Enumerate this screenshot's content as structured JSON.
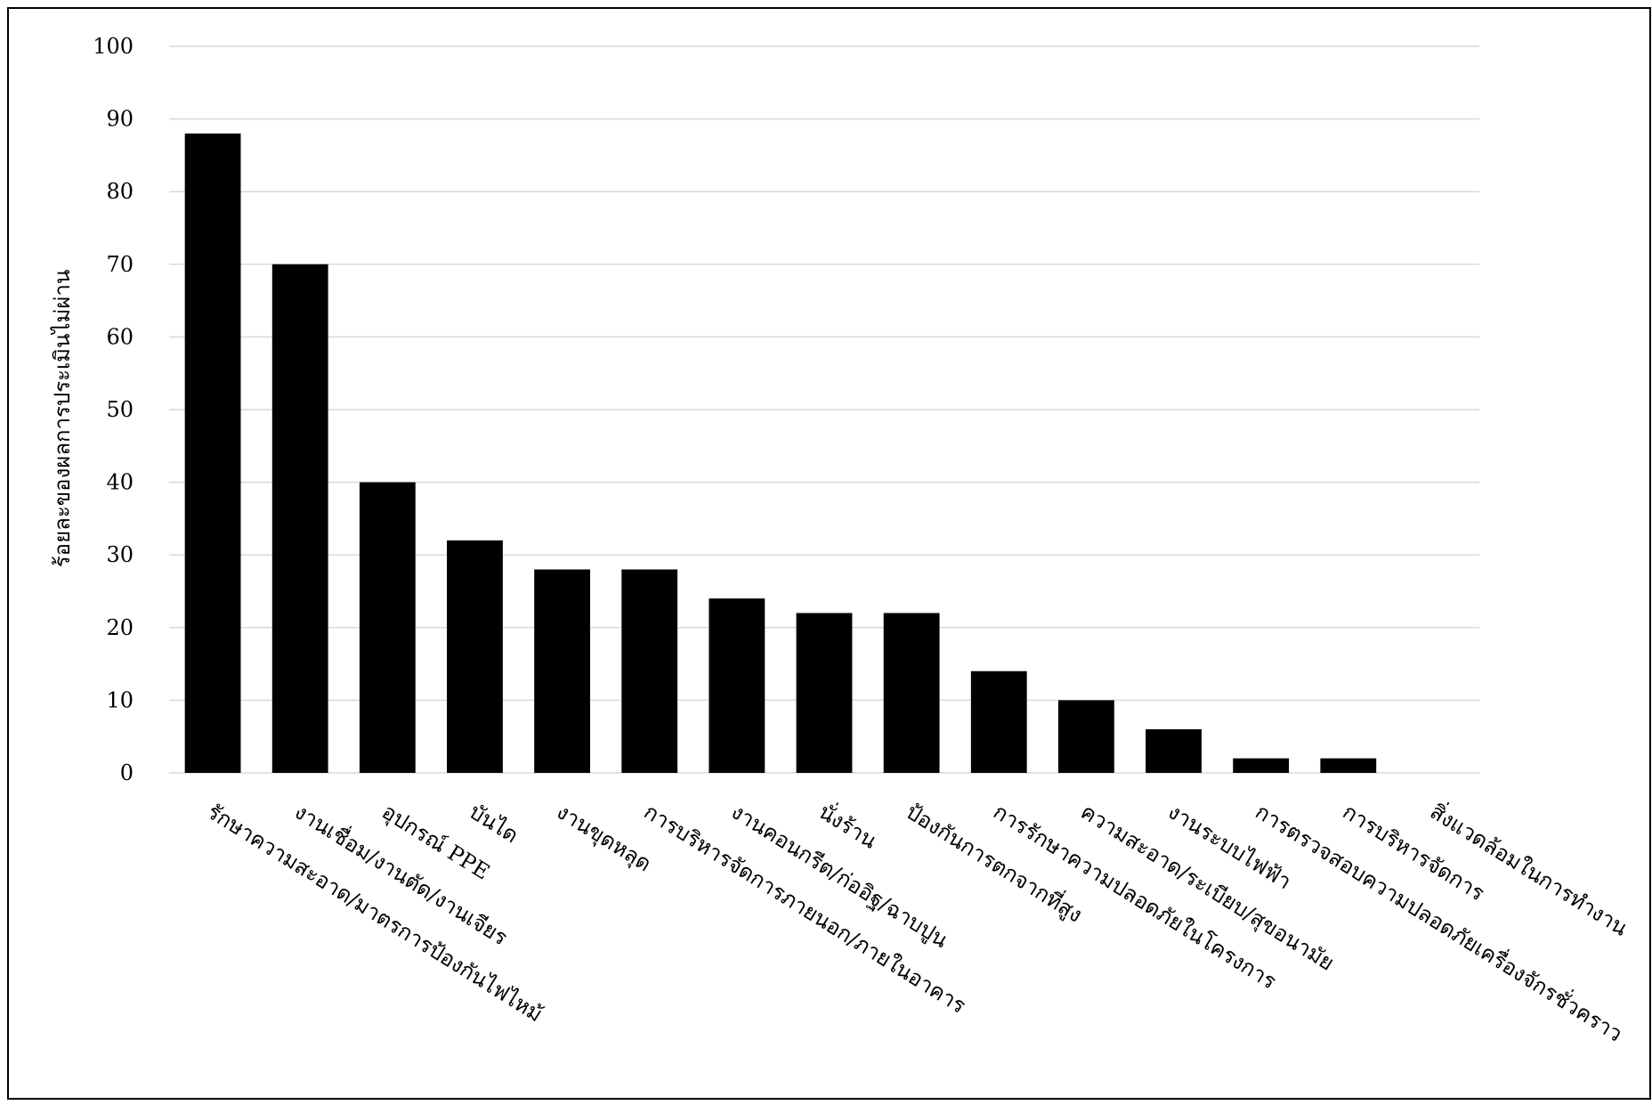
{
  "chart_data": {
    "type": "bar",
    "title": "",
    "xlabel": "",
    "ylabel": "ร้อยละของผลการประเมินไม่ผ่าน",
    "ylim": [
      0,
      100
    ],
    "yticks": [
      0,
      10,
      20,
      30,
      40,
      50,
      60,
      70,
      80,
      90,
      100
    ],
    "grid": true,
    "legend": "none",
    "categories": [
      "รักษาความสะอาด/มาตรการป้องกันไฟไหม้",
      "งานเชื่อม/งานตัด/งานเจียร",
      "อุปกรณ์ PPE",
      "บันได",
      "งานขุดหลุด",
      "การบริหารจัดการภายนอก/ภายในอาคาร",
      "งานคอนกรีต/ก่ออิฐ/ฉาบปูน",
      "นั่งร้าน",
      "ป้องกันการตกจากที่สูง",
      "การรักษาความปลอดภัยในโครงการ",
      "ความสะอาด/ระเบียบ/สุขอนามัย",
      "งานระบบไฟฟ้า",
      "การตรวจสอบความปลอดภัยเครื่องจักรชั่วคราว",
      "การบริหารจัดการ",
      "สิ่งแวดล้อมในการทำงาน"
    ],
    "values": [
      88,
      70,
      40,
      32,
      28,
      28,
      24,
      22,
      22,
      14,
      10,
      6,
      2,
      2,
      0
    ],
    "colors": {
      "bar": "#000000",
      "grid": "#d9d9d9",
      "frame": "#000000"
    }
  }
}
